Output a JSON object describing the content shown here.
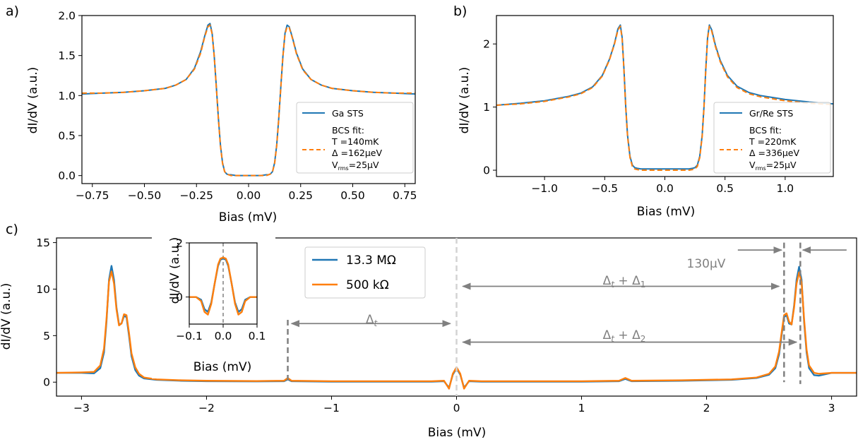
{
  "figure": {
    "panels": [
      {
        "label": "a)",
        "xlabel": "Bias (mV)",
        "ylabel": "dI/dV (a.u.)"
      },
      {
        "label": "b)",
        "xlabel": "Bias (mV)",
        "ylabel": "dI/dV (a.u.)"
      },
      {
        "label": "c)",
        "xlabel": "Bias (mV)",
        "ylabel": "dI/dV (a.u.)"
      }
    ]
  },
  "colors": {
    "blue": "#1f77b4",
    "orange": "#ff7f0e",
    "gray": "#808080",
    "lightgray": "#d3d3d3"
  },
  "chart_data": [
    {
      "id": "a",
      "type": "line",
      "label": "a)",
      "xlabel": "Bias (mV)",
      "ylabel": "dI/dV (a.u.)",
      "xlim": [
        -0.8,
        0.8
      ],
      "ylim": [
        -0.1,
        2.0
      ],
      "xticks": [
        -0.75,
        -0.5,
        -0.25,
        0.0,
        0.25,
        0.5,
        0.75
      ],
      "xticklabels": [
        "−0.75",
        "−0.50",
        "−0.25",
        "0.00",
        "0.25",
        "0.50",
        "0.75"
      ],
      "yticks": [
        0.0,
        0.5,
        1.0,
        1.5,
        2.0
      ],
      "yticklabels": [
        "0.0",
        "0.5",
        "1.0",
        "1.5",
        "2.0"
      ],
      "legend_position": "lower right",
      "legend": [
        "Ga STS",
        "BCS fit:",
        "T =140mK",
        "Δ =162μeV",
        "V",
        "rms",
        "=25μV"
      ],
      "series": [
        {
          "name": "Ga STS",
          "style": "solid",
          "color": "#1f77b4",
          "x": [
            -0.8,
            -0.7,
            -0.6,
            -0.5,
            -0.4,
            -0.35,
            -0.3,
            -0.26,
            -0.23,
            -0.21,
            -0.195,
            -0.185,
            -0.175,
            -0.165,
            -0.155,
            -0.145,
            -0.135,
            -0.125,
            -0.115,
            -0.105,
            -0.095,
            -0.085,
            -0.06,
            0.0,
            0.06,
            0.085,
            0.095,
            0.105,
            0.115,
            0.125,
            0.135,
            0.145,
            0.155,
            0.165,
            0.175,
            0.185,
            0.195,
            0.21,
            0.23,
            0.26,
            0.3,
            0.35,
            0.4,
            0.5,
            0.6,
            0.7,
            0.8
          ],
          "y": [
            1.02,
            1.03,
            1.04,
            1.06,
            1.09,
            1.13,
            1.2,
            1.34,
            1.55,
            1.75,
            1.88,
            1.9,
            1.78,
            1.5,
            1.12,
            0.72,
            0.38,
            0.16,
            0.05,
            0.02,
            0.01,
            0.01,
            0.0,
            0.0,
            0.0,
            0.01,
            0.01,
            0.02,
            0.05,
            0.16,
            0.38,
            0.72,
            1.12,
            1.5,
            1.78,
            1.88,
            1.86,
            1.73,
            1.53,
            1.33,
            1.2,
            1.13,
            1.09,
            1.06,
            1.04,
            1.03,
            1.02
          ]
        },
        {
          "name": "BCS fit",
          "style": "dashed",
          "color": "#ff7f0e",
          "x": [
            -0.8,
            -0.7,
            -0.6,
            -0.5,
            -0.4,
            -0.35,
            -0.3,
            -0.26,
            -0.23,
            -0.21,
            -0.195,
            -0.185,
            -0.175,
            -0.165,
            -0.155,
            -0.145,
            -0.135,
            -0.125,
            -0.115,
            -0.105,
            -0.095,
            -0.085,
            -0.06,
            0.0,
            0.06,
            0.085,
            0.095,
            0.105,
            0.115,
            0.125,
            0.135,
            0.145,
            0.155,
            0.165,
            0.175,
            0.185,
            0.195,
            0.21,
            0.23,
            0.26,
            0.3,
            0.35,
            0.4,
            0.5,
            0.6,
            0.7,
            0.8
          ],
          "y": [
            1.03,
            1.03,
            1.04,
            1.06,
            1.09,
            1.13,
            1.2,
            1.33,
            1.53,
            1.74,
            1.86,
            1.88,
            1.77,
            1.49,
            1.11,
            0.71,
            0.37,
            0.15,
            0.05,
            0.02,
            0.01,
            0.0,
            0.0,
            0.0,
            0.0,
            0.0,
            0.01,
            0.02,
            0.05,
            0.15,
            0.37,
            0.71,
            1.11,
            1.49,
            1.77,
            1.86,
            1.85,
            1.72,
            1.52,
            1.32,
            1.2,
            1.13,
            1.09,
            1.06,
            1.04,
            1.03,
            1.03
          ]
        }
      ]
    },
    {
      "id": "b",
      "type": "line",
      "label": "b)",
      "xlabel": "Bias (mV)",
      "ylabel": "dI/dV (a.u.)",
      "xlim": [
        -1.4,
        1.4
      ],
      "ylim": [
        -0.1,
        2.45
      ],
      "xticks": [
        -1.0,
        -0.5,
        0.0,
        0.5,
        1.0
      ],
      "xticklabels": [
        "−1.0",
        "−0.5",
        "0.0",
        "0.5",
        "1.0"
      ],
      "yticks": [
        0,
        1,
        2
      ],
      "yticklabels": [
        "0",
        "1",
        "2"
      ],
      "legend_position": "lower right",
      "legend": [
        "Gr/Re STS",
        "BCS fit:",
        "T =220mK",
        "Δ =336μeV",
        "V",
        "rms",
        "=25μV"
      ],
      "series": [
        {
          "name": "Gr/Re STS",
          "style": "solid",
          "color": "#1f77b4",
          "x": [
            -1.4,
            -1.2,
            -1.0,
            -0.8,
            -0.7,
            -0.6,
            -0.52,
            -0.46,
            -0.42,
            -0.39,
            -0.37,
            -0.355,
            -0.34,
            -0.325,
            -0.31,
            -0.29,
            -0.27,
            -0.25,
            -0.23,
            -0.2,
            -0.1,
            0.0,
            0.1,
            0.2,
            0.23,
            0.25,
            0.27,
            0.29,
            0.31,
            0.325,
            0.34,
            0.355,
            0.37,
            0.39,
            0.42,
            0.46,
            0.52,
            0.6,
            0.7,
            0.8,
            1.0,
            1.2,
            1.4
          ],
          "y": [
            1.03,
            1.06,
            1.1,
            1.17,
            1.22,
            1.32,
            1.5,
            1.76,
            2.0,
            2.24,
            2.3,
            2.1,
            1.6,
            1.0,
            0.55,
            0.22,
            0.08,
            0.04,
            0.03,
            0.02,
            0.02,
            0.02,
            0.02,
            0.02,
            0.03,
            0.04,
            0.08,
            0.22,
            0.55,
            1.0,
            1.6,
            2.1,
            2.3,
            2.22,
            1.98,
            1.74,
            1.5,
            1.33,
            1.23,
            1.18,
            1.12,
            1.08,
            1.05
          ]
        },
        {
          "name": "BCS fit",
          "style": "dashed",
          "color": "#ff7f0e",
          "x": [
            -1.4,
            -1.2,
            -1.0,
            -0.8,
            -0.7,
            -0.6,
            -0.52,
            -0.46,
            -0.42,
            -0.39,
            -0.37,
            -0.355,
            -0.34,
            -0.325,
            -0.31,
            -0.29,
            -0.27,
            -0.25,
            -0.23,
            -0.2,
            -0.1,
            0.0,
            0.1,
            0.2,
            0.23,
            0.25,
            0.27,
            0.29,
            0.31,
            0.325,
            0.34,
            0.355,
            0.37,
            0.39,
            0.42,
            0.46,
            0.52,
            0.6,
            0.7,
            0.8,
            1.0,
            1.2,
            1.4
          ],
          "y": [
            1.03,
            1.05,
            1.09,
            1.16,
            1.21,
            1.31,
            1.49,
            1.75,
            1.99,
            2.22,
            2.28,
            2.08,
            1.58,
            0.98,
            0.53,
            0.2,
            0.06,
            0.02,
            0.01,
            0.0,
            0.0,
            0.0,
            0.0,
            0.0,
            0.01,
            0.02,
            0.06,
            0.2,
            0.53,
            0.98,
            1.58,
            2.08,
            2.28,
            2.2,
            1.96,
            1.72,
            1.48,
            1.31,
            1.21,
            1.16,
            1.1,
            1.06,
            1.04
          ]
        }
      ]
    },
    {
      "id": "c",
      "type": "line",
      "label": "c)",
      "xlabel": "Bias (mV)",
      "ylabel": "dI/dV (a.u.)",
      "xlim": [
        -3.2,
        3.2
      ],
      "ylim": [
        -1.5,
        15.5
      ],
      "xticks": [
        -3,
        -2,
        -1,
        0,
        1,
        2,
        3
      ],
      "xticklabels": [
        "−3",
        "−2",
        "−1",
        "0",
        "1",
        "2",
        "3"
      ],
      "yticks": [
        0,
        5,
        10,
        15
      ],
      "yticklabels": [
        "0",
        "5",
        "10",
        "15"
      ],
      "legend_position": "upper center",
      "legend": [
        "13.3 MΩ",
        "500 kΩ"
      ],
      "annotations": {
        "delta_t": "Δ",
        "delta_t_sub": "t",
        "delta_t1_a": "Δ",
        "delta_t1_sub": "t",
        "delta_t1_plus": " + Δ",
        "delta_t1_sub2": "1",
        "delta_t2_a": "Δ",
        "delta_t2_sub": "t",
        "delta_t2_plus": " + Δ",
        "delta_t2_sub2": "2",
        "splitting": "130μV",
        "vlines_x": [
          -1.35,
          0.0,
          2.62,
          2.75
        ],
        "arrows": [
          {
            "from": -0.05,
            "to": -1.32,
            "y": 6.3,
            "twoway": true
          },
          {
            "from": 2.58,
            "to": 0.05,
            "y": 10.3,
            "twoway": true
          },
          {
            "from": 2.72,
            "to": 0.05,
            "y": 4.3,
            "twoway": true
          }
        ],
        "splitting_arrows": [
          {
            "from": 2.25,
            "to": 2.6,
            "y": 14.2
          },
          {
            "from": 3.12,
            "to": 2.77,
            "y": 14.2
          }
        ]
      },
      "series": [
        {
          "name": "13.3 MΩ",
          "style": "solid",
          "color": "#1f77b4",
          "x": [
            -3.2,
            -3.0,
            -2.9,
            -2.85,
            -2.82,
            -2.8,
            -2.78,
            -2.76,
            -2.74,
            -2.72,
            -2.7,
            -2.68,
            -2.66,
            -2.64,
            -2.62,
            -2.6,
            -2.57,
            -2.54,
            -2.5,
            -2.4,
            -2.2,
            -2.0,
            -1.6,
            -1.38,
            -1.35,
            -1.32,
            -1.0,
            -0.5,
            -0.2,
            -0.1,
            -0.06,
            -0.03,
            0.0,
            0.03,
            0.06,
            0.1,
            0.2,
            0.5,
            1.0,
            1.3,
            1.35,
            1.4,
            1.8,
            2.2,
            2.4,
            2.5,
            2.55,
            2.58,
            2.6,
            2.62,
            2.64,
            2.66,
            2.68,
            2.7,
            2.72,
            2.74,
            2.76,
            2.78,
            2.8,
            2.82,
            2.86,
            2.9,
            3.0,
            3.2
          ],
          "y": [
            1.0,
            1.0,
            0.95,
            1.5,
            3.2,
            6.5,
            11.0,
            12.5,
            11.0,
            8.0,
            6.2,
            6.3,
            7.1,
            7.0,
            5.0,
            2.8,
            1.3,
            0.7,
            0.4,
            0.25,
            0.15,
            0.1,
            0.08,
            0.1,
            0.3,
            0.1,
            0.05,
            0.05,
            0.05,
            0.1,
            -0.6,
            0.8,
            1.5,
            0.8,
            -0.6,
            0.1,
            0.05,
            0.05,
            0.05,
            0.1,
            0.35,
            0.1,
            0.15,
            0.25,
            0.45,
            0.8,
            1.5,
            3.0,
            5.0,
            7.0,
            7.2,
            6.3,
            6.2,
            8.2,
            11.0,
            12.4,
            11.0,
            6.5,
            3.2,
            1.5,
            0.75,
            0.7,
            1.0,
            1.0
          ]
        },
        {
          "name": "500 kΩ",
          "style": "solid",
          "color": "#ff7f0e",
          "x": [
            -3.2,
            -3.0,
            -2.9,
            -2.85,
            -2.82,
            -2.8,
            -2.78,
            -2.76,
            -2.74,
            -2.72,
            -2.7,
            -2.68,
            -2.66,
            -2.64,
            -2.62,
            -2.6,
            -2.57,
            -2.54,
            -2.5,
            -2.4,
            -2.2,
            -2.0,
            -1.6,
            -1.38,
            -1.35,
            -1.32,
            -1.0,
            -0.5,
            -0.2,
            -0.1,
            -0.06,
            -0.03,
            0.0,
            0.03,
            0.06,
            0.1,
            0.2,
            0.5,
            1.0,
            1.3,
            1.35,
            1.4,
            1.8,
            2.2,
            2.4,
            2.5,
            2.55,
            2.58,
            2.6,
            2.62,
            2.64,
            2.66,
            2.68,
            2.7,
            2.72,
            2.74,
            2.76,
            2.78,
            2.8,
            2.82,
            2.86,
            2.9,
            3.0,
            3.2
          ],
          "y": [
            1.0,
            1.05,
            1.1,
            1.8,
            3.6,
            6.8,
            10.8,
            11.9,
            10.6,
            7.8,
            6.1,
            6.3,
            7.3,
            7.2,
            5.3,
            3.1,
            1.6,
            0.9,
            0.5,
            0.3,
            0.2,
            0.15,
            0.12,
            0.15,
            0.45,
            0.15,
            0.1,
            0.1,
            0.1,
            0.15,
            -0.7,
            0.9,
            1.6,
            0.9,
            -0.7,
            0.15,
            0.1,
            0.1,
            0.1,
            0.15,
            0.45,
            0.15,
            0.2,
            0.3,
            0.5,
            0.9,
            1.7,
            3.3,
            5.3,
            7.2,
            7.4,
            6.5,
            6.2,
            8.0,
            10.6,
            11.8,
            10.7,
            6.8,
            3.5,
            1.8,
            1.0,
            0.9,
            1.0,
            1.0
          ]
        }
      ]
    },
    {
      "id": "inset",
      "type": "line",
      "xlabel": "Bias (mV)",
      "ylabel": "dI/dV (a.u.)",
      "xlim": [
        -0.1,
        0.1
      ],
      "ylim": [
        -1.0,
        2.0
      ],
      "xticks": [
        -0.1,
        0.0,
        0.1
      ],
      "xticklabels": [
        "−0.1",
        "0.0",
        "0.1"
      ],
      "yticks": [
        0,
        2
      ],
      "yticklabels": [
        "0",
        "2"
      ],
      "vline_x": 0.0,
      "series": [
        {
          "name": "13.3 MΩ",
          "style": "solid",
          "color": "#1f77b4",
          "x": [
            -0.1,
            -0.08,
            -0.065,
            -0.055,
            -0.045,
            -0.035,
            -0.025,
            -0.015,
            -0.008,
            0.0,
            0.008,
            0.015,
            0.025,
            0.035,
            0.045,
            0.055,
            0.065,
            0.08,
            0.1
          ],
          "y": [
            0.0,
            0.0,
            -0.1,
            -0.45,
            -0.55,
            -0.2,
            0.5,
            1.15,
            1.38,
            1.42,
            1.38,
            1.15,
            0.5,
            -0.2,
            -0.55,
            -0.45,
            -0.1,
            0.0,
            0.0
          ]
        },
        {
          "name": "500 kΩ",
          "style": "solid",
          "color": "#ff7f0e",
          "x": [
            -0.1,
            -0.08,
            -0.065,
            -0.055,
            -0.045,
            -0.035,
            -0.025,
            -0.015,
            -0.008,
            0.0,
            0.008,
            0.015,
            0.025,
            0.035,
            0.045,
            0.055,
            0.065,
            0.08,
            0.1
          ],
          "y": [
            0.0,
            0.0,
            -0.15,
            -0.55,
            -0.65,
            -0.25,
            0.5,
            1.2,
            1.42,
            1.46,
            1.42,
            1.2,
            0.5,
            -0.25,
            -0.65,
            -0.55,
            -0.15,
            0.0,
            0.0
          ]
        }
      ]
    }
  ]
}
